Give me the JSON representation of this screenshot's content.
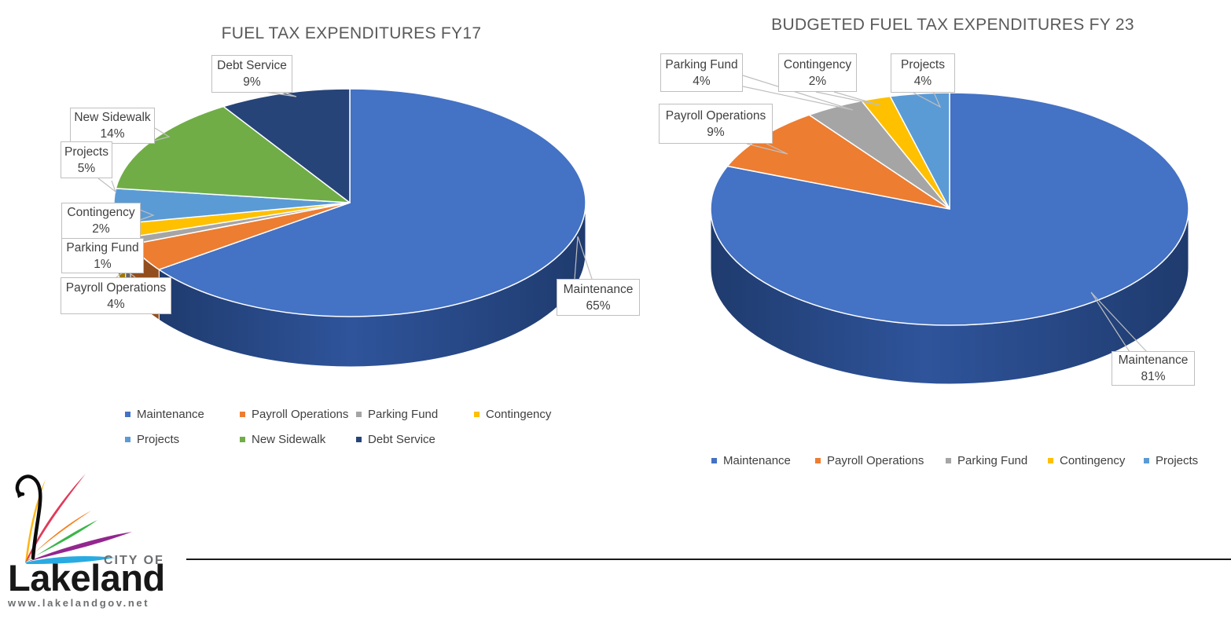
{
  "chart_data": [
    {
      "type": "pie",
      "style": "pie-3d",
      "title": "FUEL TAX EXPENDITURES FY17",
      "labels": [
        "Maintenance",
        "Payroll Operations",
        "Parking Fund",
        "Contingency",
        "Projects",
        "New Sidewalk",
        "Debt Service"
      ],
      "values": [
        65,
        4,
        1,
        2,
        5,
        14,
        9
      ],
      "value_labels": [
        "65%",
        "4%",
        "1%",
        "2%",
        "5%",
        "14%",
        "9%"
      ],
      "colors": [
        "#4472C4",
        "#ED7D31",
        "#A5A5A5",
        "#FFC000",
        "#5B9BD5",
        "#70AD47",
        "#264478"
      ],
      "unit": "percent",
      "start_angle_deg": 0,
      "direction": "clockwise",
      "legend_position": "bottom",
      "legend_rows": [
        [
          0,
          1,
          2,
          3
        ],
        [
          4,
          5,
          6
        ]
      ]
    },
    {
      "type": "pie",
      "style": "pie-3d",
      "title": "BUDGETED FUEL TAX EXPENDITURES FY 23",
      "labels": [
        "Maintenance",
        "Payroll Operations",
        "Parking Fund",
        "Contingency",
        "Projects"
      ],
      "values": [
        81,
        9,
        4,
        2,
        4
      ],
      "value_labels": [
        "81%",
        "9%",
        "4%",
        "2%",
        "4%"
      ],
      "colors": [
        "#4472C4",
        "#ED7D31",
        "#A5A5A5",
        "#FFC000",
        "#5B9BD5"
      ],
      "unit": "percent",
      "start_angle_deg": 0,
      "direction": "clockwise",
      "legend_position": "bottom",
      "legend_rows": [
        [
          0,
          1,
          2,
          3,
          4
        ]
      ]
    }
  ],
  "logo": {
    "city_of": "CITY OF",
    "name": "Lakeland",
    "website": "www.lakelandgov.net",
    "colors": {
      "text_gray": "#6D6E71",
      "name_black": "#171717",
      "feather_yellow": "#FDB515",
      "feather_red": "#E23A59",
      "feather_orange": "#F58220",
      "feather_green": "#3BB54A",
      "feather_magenta": "#93268F",
      "feather_cyan": "#29ABE2",
      "neck_black": "#0B0B0B"
    }
  }
}
